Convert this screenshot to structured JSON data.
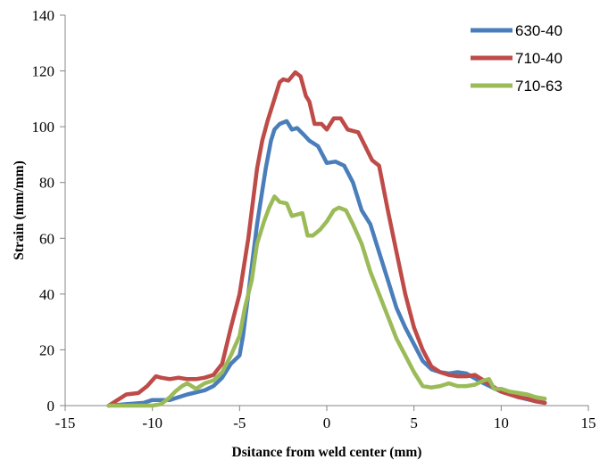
{
  "chart_data": {
    "type": "line",
    "title": "",
    "xlabel": "Dsitance from weld center (mm)",
    "ylabel": "Strain (mm/mm)",
    "xlim": [
      -15,
      15
    ],
    "ylim": [
      0,
      140
    ],
    "xticks": [
      -15,
      -10,
      -5,
      0,
      5,
      10,
      15
    ],
    "yticks": [
      0,
      20,
      40,
      60,
      80,
      100,
      120,
      140
    ],
    "xtick_labels": [
      "-15",
      "-10",
      "-5",
      "0",
      "5",
      "10",
      "15"
    ],
    "ytick_labels": [
      "0",
      "20",
      "40",
      "60",
      "80",
      "100",
      "120",
      "140"
    ],
    "grid": false,
    "legend_position": "top-right",
    "series": [
      {
        "name": "630-40",
        "color": "#4a7ebb",
        "points": [
          [
            -12.5,
            0
          ],
          [
            -11.5,
            0.5
          ],
          [
            -10.5,
            1
          ],
          [
            -10,
            2
          ],
          [
            -9,
            2
          ],
          [
            -8,
            4
          ],
          [
            -7,
            5.5
          ],
          [
            -6.5,
            7
          ],
          [
            -6,
            10
          ],
          [
            -5.5,
            15
          ],
          [
            -5,
            18
          ],
          [
            -4.8,
            25
          ],
          [
            -4.5,
            40
          ],
          [
            -4,
            65
          ],
          [
            -3.5,
            85
          ],
          [
            -3.2,
            95
          ],
          [
            -3,
            99
          ],
          [
            -2.7,
            101
          ],
          [
            -2.3,
            102
          ],
          [
            -2,
            99
          ],
          [
            -1.7,
            99.5
          ],
          [
            -1.3,
            97
          ],
          [
            -1,
            95
          ],
          [
            -0.5,
            93
          ],
          [
            0,
            87
          ],
          [
            0.5,
            87.5
          ],
          [
            1,
            86
          ],
          [
            1.5,
            80
          ],
          [
            2,
            70
          ],
          [
            2.5,
            65
          ],
          [
            3,
            55
          ],
          [
            3.5,
            45
          ],
          [
            4,
            35
          ],
          [
            4.5,
            28
          ],
          [
            5,
            22
          ],
          [
            5.5,
            16
          ],
          [
            6,
            13
          ],
          [
            6.5,
            12
          ],
          [
            7,
            11.5
          ],
          [
            7.5,
            12
          ],
          [
            8,
            11.5
          ],
          [
            9,
            8
          ],
          [
            10,
            5
          ],
          [
            11,
            3
          ],
          [
            12,
            1.5
          ],
          [
            12.5,
            1
          ]
        ]
      },
      {
        "name": "710-40",
        "color": "#be4b48",
        "points": [
          [
            -12.5,
            0
          ],
          [
            -11.5,
            4
          ],
          [
            -10.8,
            4.5
          ],
          [
            -10.3,
            7
          ],
          [
            -9.8,
            10.5
          ],
          [
            -9.5,
            10
          ],
          [
            -9,
            9.5
          ],
          [
            -8.5,
            10
          ],
          [
            -8,
            9.5
          ],
          [
            -7.5,
            9.5
          ],
          [
            -7,
            10
          ],
          [
            -6.5,
            11
          ],
          [
            -6,
            15
          ],
          [
            -5.5,
            28
          ],
          [
            -5,
            40
          ],
          [
            -4.5,
            60
          ],
          [
            -4,
            85
          ],
          [
            -3.7,
            95
          ],
          [
            -3.4,
            102
          ],
          [
            -3,
            110
          ],
          [
            -2.7,
            116
          ],
          [
            -2.5,
            117
          ],
          [
            -2.2,
            116.5
          ],
          [
            -1.8,
            119.5
          ],
          [
            -1.5,
            118
          ],
          [
            -1.2,
            111
          ],
          [
            -1,
            109
          ],
          [
            -0.7,
            101
          ],
          [
            -0.3,
            101
          ],
          [
            0,
            99
          ],
          [
            0.4,
            103
          ],
          [
            0.8,
            103
          ],
          [
            1.2,
            99
          ],
          [
            1.8,
            98
          ],
          [
            2.2,
            93
          ],
          [
            2.6,
            88
          ],
          [
            3,
            86
          ],
          [
            3.5,
            70
          ],
          [
            4,
            55
          ],
          [
            4.5,
            40
          ],
          [
            5,
            28
          ],
          [
            5.5,
            20
          ],
          [
            6,
            14
          ],
          [
            6.5,
            12
          ],
          [
            7,
            11
          ],
          [
            7.5,
            10.5
          ],
          [
            8,
            10.5
          ],
          [
            8.5,
            11
          ],
          [
            9,
            9
          ],
          [
            9.5,
            7
          ],
          [
            10,
            5
          ],
          [
            10.5,
            4
          ],
          [
            11,
            3
          ],
          [
            11.5,
            2.5
          ],
          [
            12,
            1.5
          ],
          [
            12.5,
            1
          ]
        ]
      },
      {
        "name": "710-63",
        "color": "#9bbb59",
        "points": [
          [
            -12.5,
            0
          ],
          [
            -11,
            0
          ],
          [
            -10,
            0
          ],
          [
            -9.5,
            0.5
          ],
          [
            -9,
            3
          ],
          [
            -8.7,
            5
          ],
          [
            -8.3,
            7
          ],
          [
            -8,
            8
          ],
          [
            -7.5,
            6
          ],
          [
            -7,
            8
          ],
          [
            -6.5,
            9
          ],
          [
            -6,
            12
          ],
          [
            -5.5,
            18
          ],
          [
            -5,
            25
          ],
          [
            -4.7,
            35
          ],
          [
            -4.3,
            45
          ],
          [
            -4,
            58
          ],
          [
            -3.6,
            66
          ],
          [
            -3.3,
            71
          ],
          [
            -3,
            75
          ],
          [
            -2.7,
            73
          ],
          [
            -2.3,
            72.5
          ],
          [
            -2,
            68
          ],
          [
            -1.7,
            68.5
          ],
          [
            -1.4,
            69
          ],
          [
            -1.1,
            61
          ],
          [
            -0.8,
            61
          ],
          [
            -0.4,
            63
          ],
          [
            0,
            66
          ],
          [
            0.4,
            70
          ],
          [
            0.7,
            71
          ],
          [
            1.1,
            70
          ],
          [
            1.5,
            65
          ],
          [
            2,
            58
          ],
          [
            2.5,
            48
          ],
          [
            3,
            40
          ],
          [
            3.5,
            32
          ],
          [
            4,
            24
          ],
          [
            4.5,
            18
          ],
          [
            5,
            12
          ],
          [
            5.5,
            7
          ],
          [
            6,
            6.5
          ],
          [
            6.5,
            7
          ],
          [
            7,
            8
          ],
          [
            7.5,
            7
          ],
          [
            8,
            7
          ],
          [
            8.5,
            7.5
          ],
          [
            9,
            9
          ],
          [
            9.3,
            9.5
          ],
          [
            9.6,
            6
          ],
          [
            10,
            6
          ],
          [
            10.5,
            5
          ],
          [
            11,
            4.5
          ],
          [
            11.5,
            4
          ],
          [
            12,
            3
          ],
          [
            12.5,
            2.5
          ]
        ]
      }
    ]
  }
}
